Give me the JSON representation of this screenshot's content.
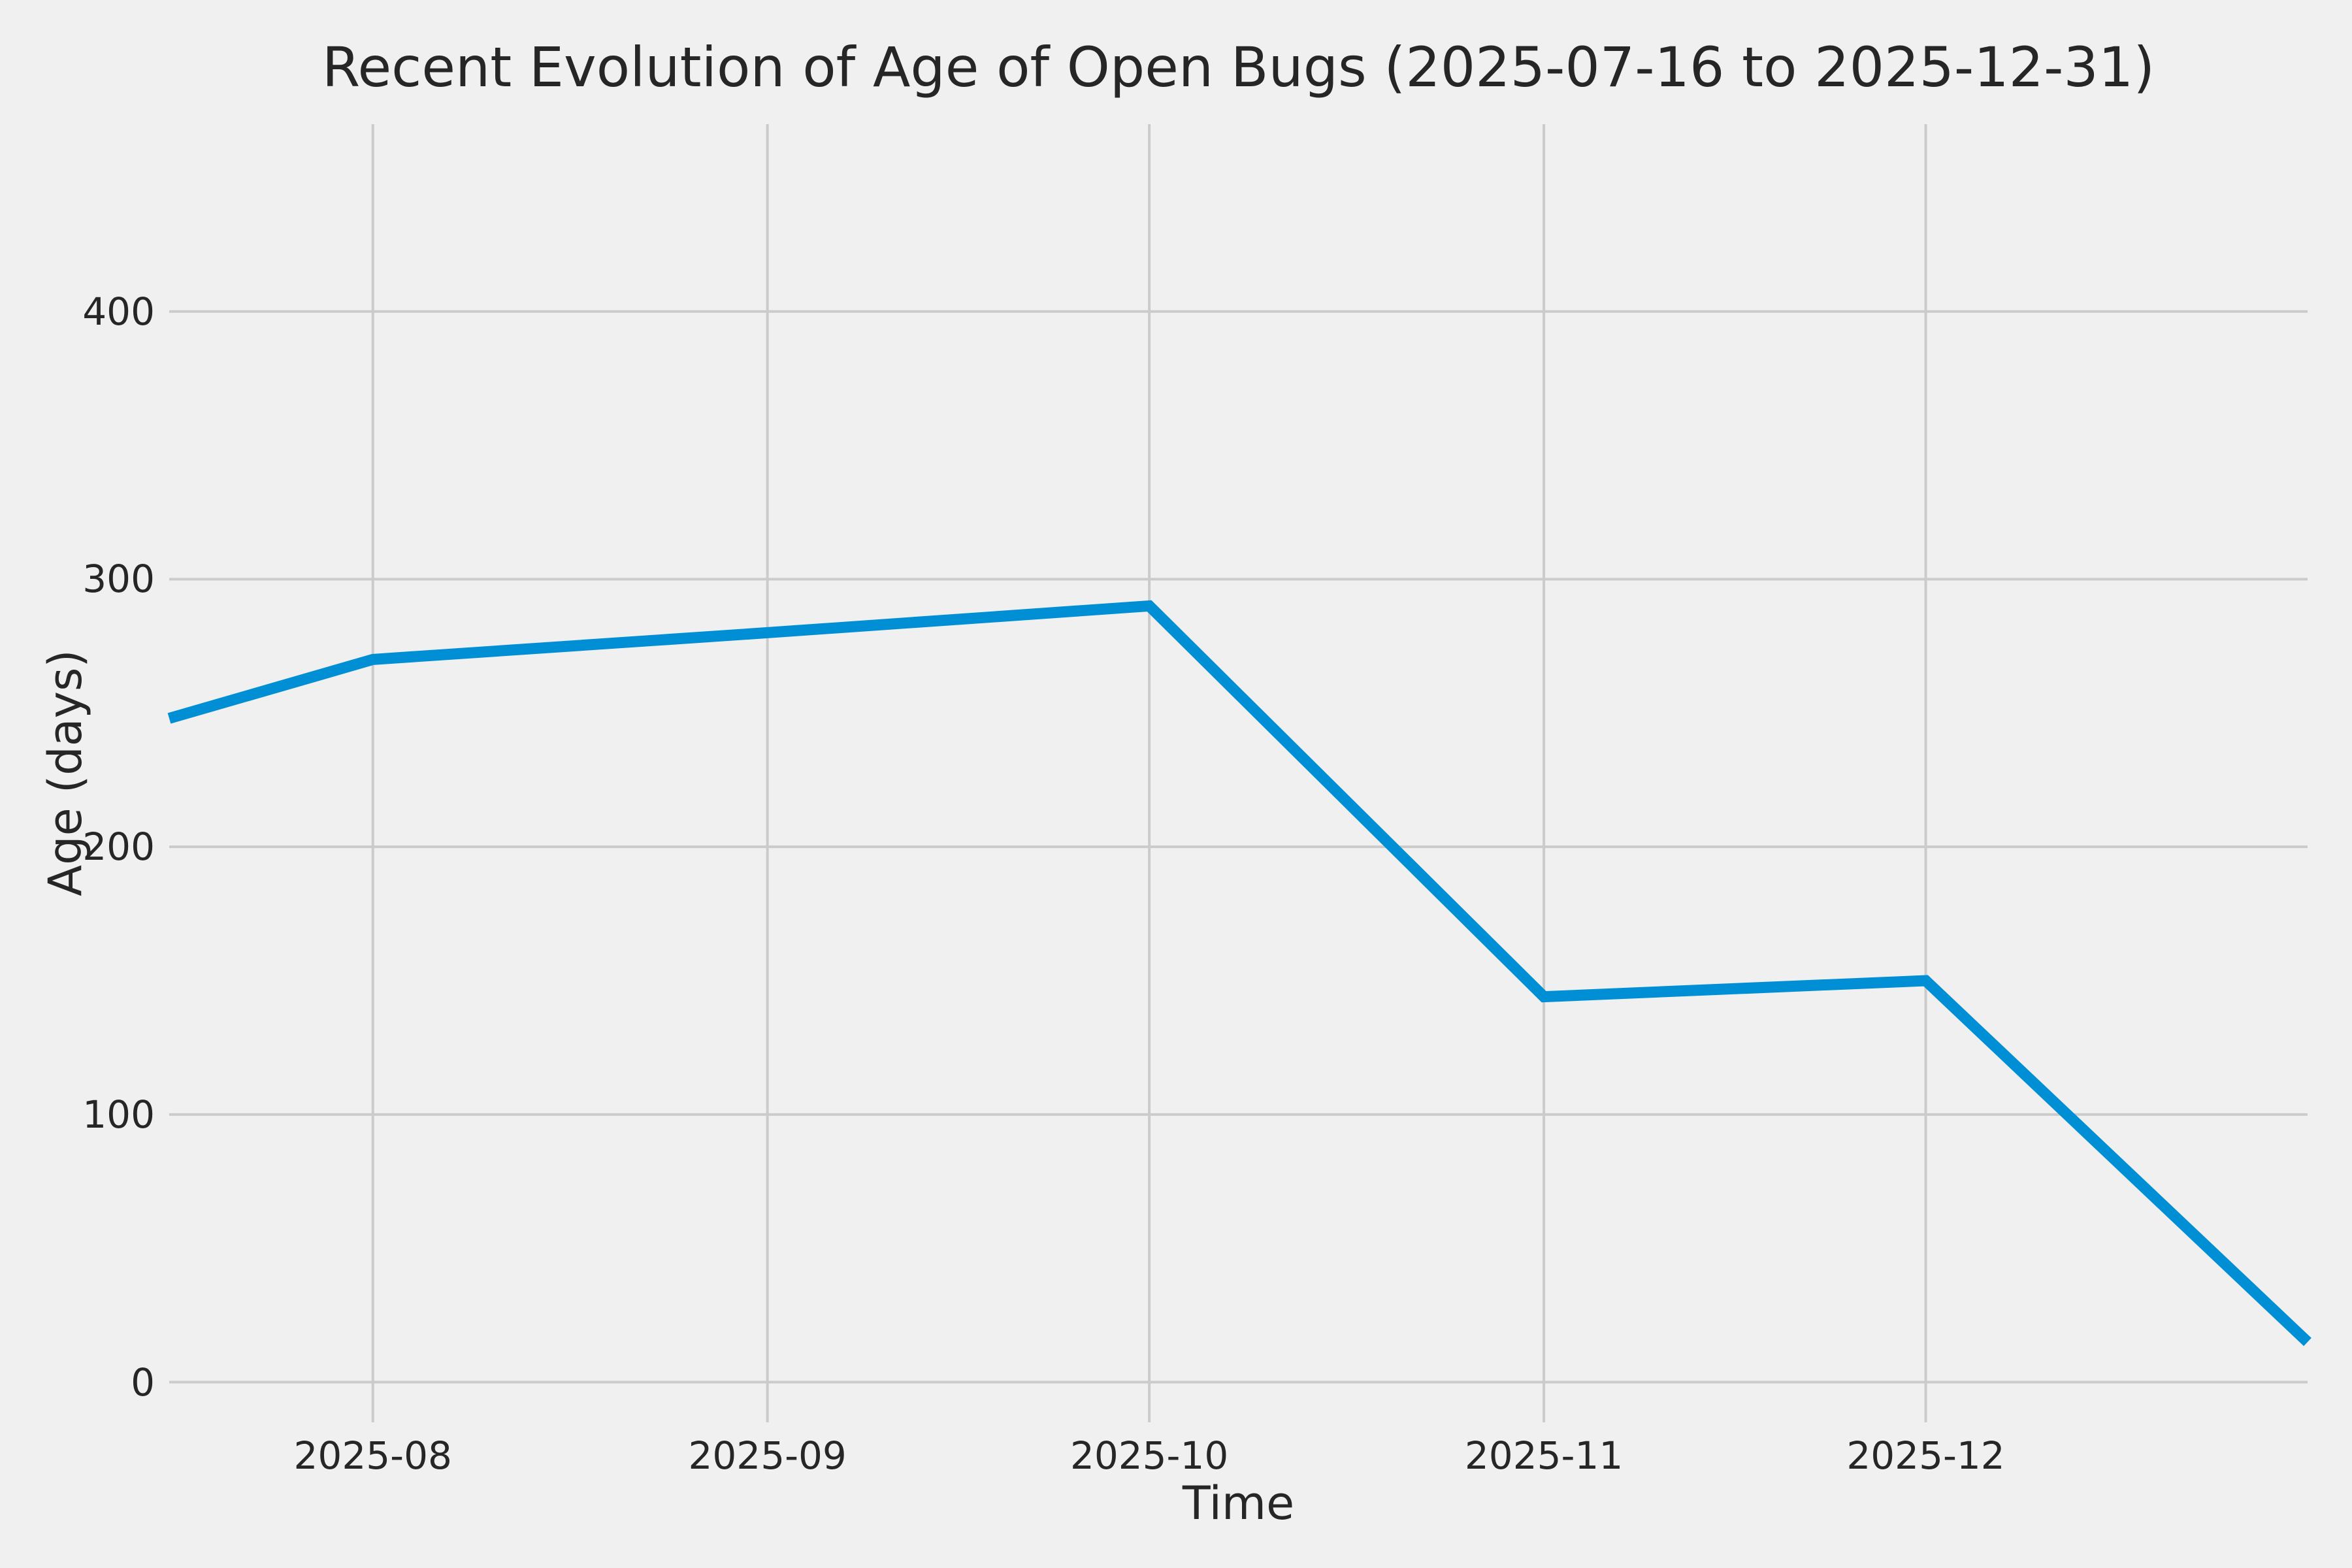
{
  "figure": {
    "background_color": "#f0f0f0"
  },
  "chart_data": {
    "type": "line",
    "title": "Recent Evolution of Age of Open Bugs (2025-07-16 to 2025-12-31)",
    "xlabel": "Time",
    "ylabel": "Age (days)",
    "x": [
      "2025-07-16",
      "2025-08-01",
      "2025-09-01",
      "2025-10-01",
      "2025-11-01",
      "2025-12-01",
      "2025-12-31"
    ],
    "x_days": [
      0,
      16,
      47,
      77,
      108,
      138,
      168
    ],
    "series": [
      {
        "name": "age-of-open-bugs",
        "values": [
          248,
          270,
          280,
          290,
          144,
          150,
          15
        ]
      }
    ],
    "x_tick_labels": [
      "2025-08",
      "2025-09",
      "2025-10",
      "2025-11",
      "2025-12"
    ],
    "x_tick_days": [
      16,
      47,
      77,
      108,
      138
    ],
    "y_tick_labels": [
      "0",
      "100",
      "200",
      "300",
      "400"
    ],
    "y_ticks": [
      0,
      100,
      200,
      300,
      400
    ],
    "xlim_days": [
      0,
      168
    ],
    "ylim": [
      -15,
      470
    ],
    "grid": true,
    "legend": false,
    "line_color": "#008fd5",
    "grid_color": "#cbcbcb",
    "text_color": "#262626",
    "background_color": "#f0f0f0"
  }
}
